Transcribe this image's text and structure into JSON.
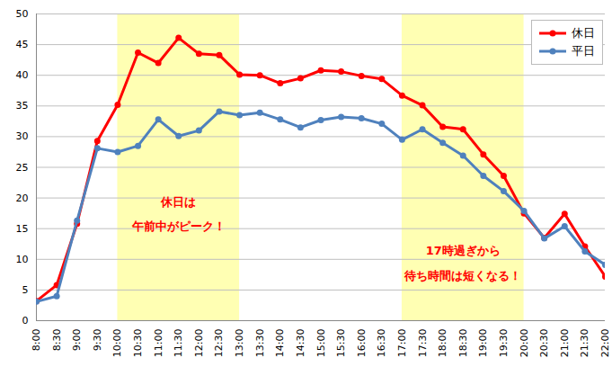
{
  "chart_data": {
    "type": "line",
    "categories": [
      "8:00",
      "8:30",
      "9:00",
      "9:30",
      "10:00",
      "10:30",
      "11:00",
      "11:30",
      "12:00",
      "12:30",
      "13:00",
      "13:30",
      "14:00",
      "14:30",
      "15:00",
      "15:30",
      "16:00",
      "16:30",
      "17:00",
      "17:30",
      "18:00",
      "18:30",
      "19:00",
      "19:30",
      "20:00",
      "20:30",
      "21:00",
      "21:30",
      "22:00"
    ],
    "series": [
      {
        "name": "休日",
        "color": "#ff0000",
        "values": [
          3.2,
          5.8,
          15.8,
          29.3,
          35.2,
          43.7,
          42.0,
          46.1,
          43.5,
          43.3,
          40.1,
          40.0,
          38.7,
          39.5,
          40.8,
          40.6,
          39.9,
          39.4,
          36.7,
          35.1,
          31.6,
          31.2,
          27.1,
          23.6,
          17.5,
          13.5,
          17.4,
          12.1,
          7.2
        ]
      },
      {
        "name": "平日",
        "color": "#4f81bd",
        "values": [
          3.1,
          4.0,
          16.3,
          28.1,
          27.5,
          28.5,
          32.8,
          30.1,
          31.0,
          34.1,
          33.5,
          33.9,
          32.8,
          31.5,
          32.7,
          33.2,
          33.0,
          32.1,
          29.5,
          31.2,
          29.0,
          26.9,
          23.6,
          21.1,
          17.9,
          13.4,
          15.4,
          11.3,
          9.1
        ]
      }
    ],
    "ylim": [
      0,
      50
    ],
    "yticks": [
      0,
      5,
      10,
      15,
      20,
      25,
      30,
      35,
      40,
      45,
      50
    ],
    "grid": true,
    "legend": "upper right",
    "marker": "circle",
    "annotations": [
      {
        "text": "休日は\n午前中がピーク！",
        "span": [
          "10:00",
          "13:00"
        ],
        "color": "#ff0000",
        "highlight": "#ffff99"
      },
      {
        "text": "17時過ぎから\n待ち時間は短くなる！",
        "span": [
          "17:00",
          "20:00"
        ],
        "color": "#ff0000",
        "highlight": "#ffff99"
      }
    ]
  }
}
